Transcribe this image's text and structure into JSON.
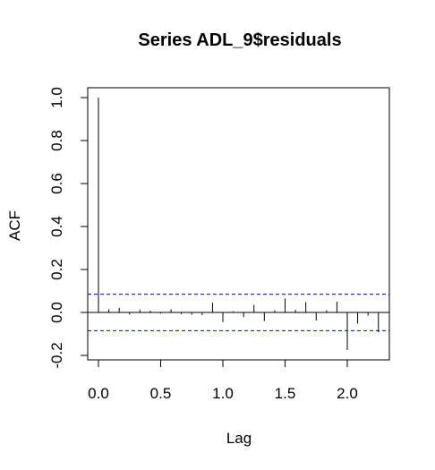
{
  "chart_data": {
    "type": "bar",
    "title": "Series  ADL_9$residuals",
    "xlabel": "Lag",
    "ylabel": "ACF",
    "xlim": [
      0,
      2.3
    ],
    "ylim": [
      -0.2,
      1.0
    ],
    "x_ticks": [
      "0.0",
      "0.5",
      "1.0",
      "1.5",
      "2.0"
    ],
    "y_ticks": [
      "-0.2",
      "0.0",
      "0.2",
      "0.4",
      "0.6",
      "0.8",
      "1.0"
    ],
    "confidence_bound": 0.085,
    "confidence_line_color": "#0000cd",
    "x": [
      0.0,
      0.0833,
      0.1667,
      0.25,
      0.3333,
      0.4167,
      0.5,
      0.5833,
      0.6667,
      0.75,
      0.8333,
      0.9167,
      1.0,
      1.0833,
      1.1667,
      1.25,
      1.3333,
      1.4167,
      1.5,
      1.5833,
      1.6667,
      1.75,
      1.8333,
      1.9167,
      2.0,
      2.0833,
      2.1667,
      2.25
    ],
    "values": [
      1.0,
      0.015,
      0.022,
      -0.01,
      0.012,
      0.008,
      -0.005,
      0.015,
      -0.008,
      -0.01,
      -0.012,
      0.045,
      -0.045,
      0.005,
      -0.022,
      0.035,
      -0.04,
      0.01,
      0.065,
      0.012,
      0.048,
      -0.038,
      0.01,
      0.05,
      -0.175,
      -0.052,
      -0.015,
      -0.092
    ]
  }
}
